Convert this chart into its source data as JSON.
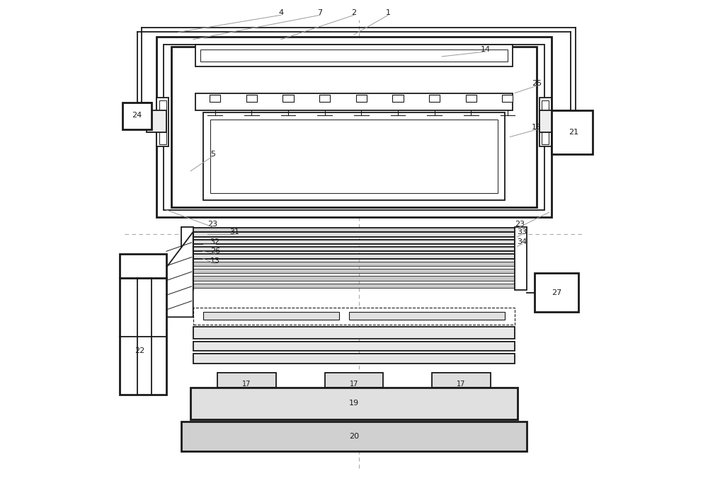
{
  "bg_color": "#ffffff",
  "lc": "#1a1a1a",
  "dc": "#aaaaaa",
  "lw_main": 1.3,
  "lw_thick": 2.0,
  "lw_thin": 0.7,
  "fig_width": 10.0,
  "fig_height": 6.9,
  "dpi": 100,
  "nozzle_positions": [
    21.5,
    29.0,
    36.5,
    44.0,
    51.5,
    59.0,
    66.5,
    74.0,
    81.5
  ]
}
